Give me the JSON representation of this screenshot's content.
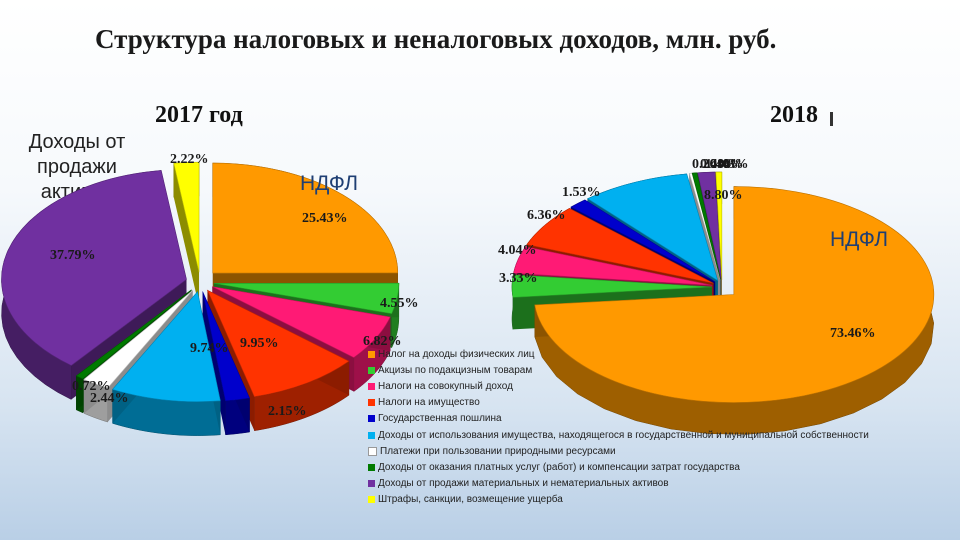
{
  "title": "Структура налоговых и неналоговых доходов, млн. руб.",
  "side_note": "Доходы от продажи активов",
  "chart_data": [
    {
      "type": "pie",
      "year": "2017 год",
      "segment_label": "НДФЛ",
      "slices": [
        {
          "category": "Налог на доходы физических лиц",
          "value": 25.43,
          "label": "25.43%"
        },
        {
          "category": "Акцизы по подакцизным товарам",
          "value": 4.55,
          "label": "4.55%"
        },
        {
          "category": "Налоги на совокупный доход",
          "value": 6.82,
          "label": "6.82%"
        },
        {
          "category": "Налоги на имущество",
          "value": 9.95,
          "label": "9.95%"
        },
        {
          "category": "Государственная пошлина",
          "value": 2.15,
          "label": "2.15%"
        },
        {
          "category": "Доходы от использования имущества, находящегося в государственной и муниципальной собственности",
          "value": 9.74,
          "label": "9.74%"
        },
        {
          "category": "Платежи при пользовании природными ресурсами",
          "value": 2.44,
          "label": "2.44%"
        },
        {
          "category": "Доходы от оказания платных услуг (работ) и компенсации затрат государства",
          "value": 0.72,
          "label": "0.72%"
        },
        {
          "category": "Доходы от продажи материальных и нематериальных активов",
          "value": 37.79,
          "label": "37.79%"
        },
        {
          "category": "Штрафы, санкции, возмещение ущерба",
          "value": 2.22,
          "label": "2.22%"
        }
      ]
    },
    {
      "type": "pie",
      "year": "2018",
      "segment_label": "НДФЛ",
      "slices": [
        {
          "category": "Налог на доходы физических лиц",
          "value": 73.46,
          "label": "73.46%"
        },
        {
          "category": "Акцизы по подакцизным товарам",
          "value": 3.33,
          "label": "3.33%"
        },
        {
          "category": "Налоги на совокупный доход",
          "value": 4.04,
          "label": "4.04%"
        },
        {
          "category": "Налоги на имущество",
          "value": 6.36,
          "label": "6.36%"
        },
        {
          "category": "Государственная пошлина",
          "value": 1.53,
          "label": "1.53%"
        },
        {
          "category": "Доходы от использования имущества, находящегося в государственной и муниципальной собственности",
          "value": 8.8,
          "label": "8.80%"
        },
        {
          "category": "Платежи при пользовании природными ресурсами",
          "value": 0.2,
          "label": "0.20%"
        },
        {
          "category": "Доходы от оказания платных услуг (работ) и компенсации затрат государства",
          "value": 0.4,
          "label": "0.40%"
        },
        {
          "category": "Доходы от продажи материальных и нематериальных активов",
          "value": 1.4,
          "label": "1.40%"
        },
        {
          "category": "Штрафы, санкции, возмещение ущерба",
          "value": 0.48,
          "label": "0.48%"
        }
      ]
    }
  ],
  "legend": {
    "placement": "bottom-center",
    "items": [
      {
        "label": "Налог на доходы физических лиц",
        "color": "#ff9900"
      },
      {
        "label": "Акцизы по подакцизным товарам",
        "color": "#33cc33"
      },
      {
        "label": "Налоги на совокупный доход",
        "color": "#ff1a75"
      },
      {
        "label": "Налоги на имущество",
        "color": "#ff3300"
      },
      {
        "label": "Государственная пошлина",
        "color": "#0000cc"
      },
      {
        "label": "Доходы от использования имущества, находящегося в государственной и муниципальной собственности",
        "color": "#00b0f0"
      },
      {
        "label": "Платежи при пользовании природными ресурсами",
        "color": "#ffffff"
      },
      {
        "label": "Доходы от оказания платных услуг (работ) и компенсации затрат государства",
        "color": "#007a00"
      },
      {
        "label": "Доходы от продажи материальных и нематериальных активов",
        "color": "#7030a0"
      },
      {
        "label": "Штрафы, санкции, возмещение ущерба",
        "color": "#ffff00"
      }
    ]
  }
}
